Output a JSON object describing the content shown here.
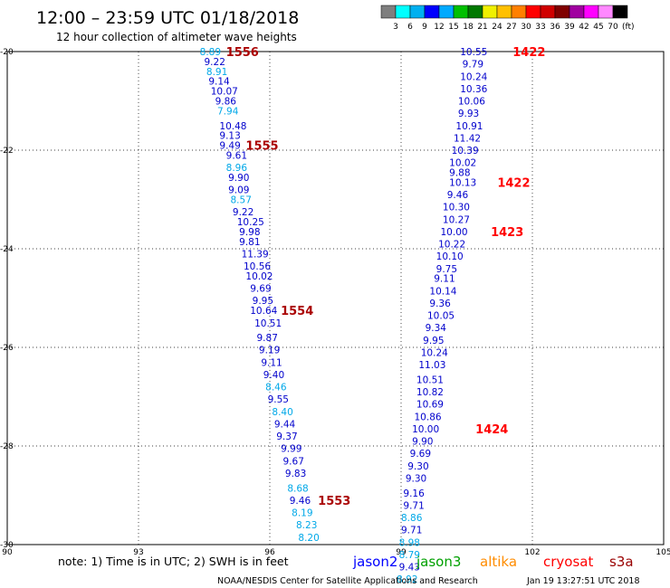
{
  "header": {
    "title": "12:00 – 23:59 UTC 01/18/2018",
    "subtitle": "12 hour collection of altimeter wave heights"
  },
  "scale": {
    "unit": "(ft)",
    "labels": [
      "3",
      "6",
      "9",
      "12",
      "15",
      "18",
      "21",
      "24",
      "27",
      "30",
      "33",
      "36",
      "39",
      "42",
      "45",
      "70"
    ],
    "colors": [
      "#7f7f7f",
      "#00ffff",
      "#00b0f0",
      "#0000ff",
      "#00aaff",
      "#00c000",
      "#007800",
      "#f0f000",
      "#ffc000",
      "#ff8000",
      "#ff0000",
      "#d00000",
      "#800000",
      "#a000a0",
      "#ff00ff",
      "#ff88ff",
      "#000000"
    ]
  },
  "map": {
    "x_ticks": [
      "90",
      "93",
      "96",
      "99",
      "102",
      "105"
    ],
    "y_ticks": [
      "-20",
      "-22",
      "-24",
      "-26",
      "-28",
      "-30"
    ],
    "lon_range": [
      90,
      105
    ],
    "lat_range": [
      -20,
      -30
    ]
  },
  "passes": [
    {
      "id": "west",
      "points": [
        {
          "lon": 94.4,
          "lat": -20.0,
          "v": "8.89",
          "c": "cyan"
        },
        {
          "lon": 94.5,
          "lat": -20.2,
          "v": "9.22",
          "c": "blue"
        },
        {
          "lon": 94.55,
          "lat": -20.4,
          "v": "8.91",
          "c": "cyan"
        },
        {
          "lon": 94.6,
          "lat": -20.6,
          "v": "9.14",
          "c": "blue"
        },
        {
          "lon": 94.65,
          "lat": -20.8,
          "v": "10.07",
          "c": "blue"
        },
        {
          "lon": 94.75,
          "lat": -21.0,
          "v": "9.86",
          "c": "blue"
        },
        {
          "lon": 94.8,
          "lat": -21.2,
          "v": "7.94",
          "c": "cyan"
        },
        {
          "lon": 94.85,
          "lat": -21.5,
          "v": "10.48",
          "c": "blue"
        },
        {
          "lon": 94.85,
          "lat": -21.7,
          "v": "9.13",
          "c": "blue"
        },
        {
          "lon": 94.85,
          "lat": -21.9,
          "v": "9.49",
          "c": "blue"
        },
        {
          "lon": 95.0,
          "lat": -22.1,
          "v": "9.61",
          "c": "blue"
        },
        {
          "lon": 95.0,
          "lat": -22.35,
          "v": "8.96",
          "c": "cyan"
        },
        {
          "lon": 95.05,
          "lat": -22.55,
          "v": "9.90",
          "c": "blue"
        },
        {
          "lon": 95.05,
          "lat": -22.8,
          "v": "9.09",
          "c": "blue"
        },
        {
          "lon": 95.1,
          "lat": -23.0,
          "v": "8.57",
          "c": "cyan"
        },
        {
          "lon": 95.15,
          "lat": -23.25,
          "v": "9.22",
          "c": "blue"
        },
        {
          "lon": 95.25,
          "lat": -23.45,
          "v": "10.25",
          "c": "blue"
        },
        {
          "lon": 95.3,
          "lat": -23.65,
          "v": "9.98",
          "c": "blue"
        },
        {
          "lon": 95.3,
          "lat": -23.85,
          "v": "9.81",
          "c": "blue"
        },
        {
          "lon": 95.35,
          "lat": -24.1,
          "v": "11.39",
          "c": "blue"
        },
        {
          "lon": 95.4,
          "lat": -24.35,
          "v": "10.56",
          "c": "blue"
        },
        {
          "lon": 95.45,
          "lat": -24.55,
          "v": "10.02",
          "c": "blue"
        },
        {
          "lon": 95.55,
          "lat": -24.8,
          "v": "9.69",
          "c": "blue"
        },
        {
          "lon": 95.6,
          "lat": -25.05,
          "v": "9.95",
          "c": "blue"
        },
        {
          "lon": 95.55,
          "lat": -25.25,
          "v": "10.64",
          "c": "blue"
        },
        {
          "lon": 95.65,
          "lat": -25.5,
          "v": "10.51",
          "c": "blue"
        },
        {
          "lon": 95.7,
          "lat": -25.8,
          "v": "9.87",
          "c": "blue"
        },
        {
          "lon": 95.75,
          "lat": -26.05,
          "v": "9.19",
          "c": "blue"
        },
        {
          "lon": 95.8,
          "lat": -26.3,
          "v": "9.11",
          "c": "blue"
        },
        {
          "lon": 95.85,
          "lat": -26.55,
          "v": "9.40",
          "c": "blue"
        },
        {
          "lon": 95.9,
          "lat": -26.8,
          "v": "8.46",
          "c": "cyan"
        },
        {
          "lon": 95.95,
          "lat": -27.05,
          "v": "9.55",
          "c": "blue"
        },
        {
          "lon": 96.05,
          "lat": -27.3,
          "v": "8.40",
          "c": "cyan"
        },
        {
          "lon": 96.1,
          "lat": -27.55,
          "v": "9.44",
          "c": "blue"
        },
        {
          "lon": 96.15,
          "lat": -27.8,
          "v": "9.37",
          "c": "blue"
        },
        {
          "lon": 96.25,
          "lat": -28.05,
          "v": "9.99",
          "c": "blue"
        },
        {
          "lon": 96.3,
          "lat": -28.3,
          "v": "9.67",
          "c": "blue"
        },
        {
          "lon": 96.35,
          "lat": -28.55,
          "v": "9.83",
          "c": "blue"
        },
        {
          "lon": 96.4,
          "lat": -28.85,
          "v": "8.68",
          "c": "cyan"
        },
        {
          "lon": 96.45,
          "lat": -29.1,
          "v": "9.46",
          "c": "blue"
        },
        {
          "lon": 96.5,
          "lat": -29.35,
          "v": "8.19",
          "c": "cyan"
        },
        {
          "lon": 96.6,
          "lat": -29.6,
          "v": "8.23",
          "c": "cyan"
        },
        {
          "lon": 96.65,
          "lat": -29.85,
          "v": "8.20",
          "c": "cyan"
        }
      ],
      "times": [
        {
          "lon": 95.0,
          "lat": -20.0,
          "t": "1556"
        },
        {
          "lon": 95.45,
          "lat": -21.9,
          "t": "1555"
        },
        {
          "lon": 96.25,
          "lat": -25.25,
          "t": "1554"
        },
        {
          "lon": 97.1,
          "lat": -29.1,
          "t": "1553"
        }
      ]
    },
    {
      "id": "east",
      "points": [
        {
          "lon": 100.35,
          "lat": -20.0,
          "v": "10.55",
          "c": "blue"
        },
        {
          "lon": 100.4,
          "lat": -20.25,
          "v": "9.79",
          "c": "blue"
        },
        {
          "lon": 100.35,
          "lat": -20.5,
          "v": "10.24",
          "c": "blue"
        },
        {
          "lon": 100.35,
          "lat": -20.75,
          "v": "10.36",
          "c": "blue"
        },
        {
          "lon": 100.3,
          "lat": -21.0,
          "v": "10.06",
          "c": "blue"
        },
        {
          "lon": 100.3,
          "lat": -21.25,
          "v": "9.93",
          "c": "blue"
        },
        {
          "lon": 100.25,
          "lat": -21.5,
          "v": "10.91",
          "c": "blue"
        },
        {
          "lon": 100.2,
          "lat": -21.75,
          "v": "11.42",
          "c": "blue"
        },
        {
          "lon": 100.15,
          "lat": -22.0,
          "v": "10.39",
          "c": "blue"
        },
        {
          "lon": 100.1,
          "lat": -22.25,
          "v": "10.02",
          "c": "blue"
        },
        {
          "lon": 100.1,
          "lat": -22.45,
          "v": "9.88",
          "c": "blue"
        },
        {
          "lon": 100.1,
          "lat": -22.65,
          "v": "10.13",
          "c": "blue"
        },
        {
          "lon": 100.05,
          "lat": -22.9,
          "v": "9.46",
          "c": "blue"
        },
        {
          "lon": 99.95,
          "lat": -23.15,
          "v": "10.30",
          "c": "blue"
        },
        {
          "lon": 99.95,
          "lat": -23.4,
          "v": "10.27",
          "c": "blue"
        },
        {
          "lon": 99.9,
          "lat": -23.65,
          "v": "10.00",
          "c": "blue"
        },
        {
          "lon": 99.85,
          "lat": -23.9,
          "v": "10.22",
          "c": "blue"
        },
        {
          "lon": 99.8,
          "lat": -24.15,
          "v": "10.10",
          "c": "blue"
        },
        {
          "lon": 99.8,
          "lat": -24.4,
          "v": "9.75",
          "c": "blue"
        },
        {
          "lon": 99.75,
          "lat": -24.6,
          "v": "9.11",
          "c": "blue"
        },
        {
          "lon": 99.65,
          "lat": -24.85,
          "v": "10.14",
          "c": "blue"
        },
        {
          "lon": 99.65,
          "lat": -25.1,
          "v": "9.36",
          "c": "blue"
        },
        {
          "lon": 99.6,
          "lat": -25.35,
          "v": "10.05",
          "c": "blue"
        },
        {
          "lon": 99.55,
          "lat": -25.6,
          "v": "9.34",
          "c": "blue"
        },
        {
          "lon": 99.5,
          "lat": -25.85,
          "v": "9.95",
          "c": "blue"
        },
        {
          "lon": 99.45,
          "lat": -26.1,
          "v": "10.24",
          "c": "blue"
        },
        {
          "lon": 99.4,
          "lat": -26.35,
          "v": "11.03",
          "c": "blue"
        },
        {
          "lon": 99.35,
          "lat": -26.65,
          "v": "10.51",
          "c": "blue"
        },
        {
          "lon": 99.35,
          "lat": -26.9,
          "v": "10.82",
          "c": "blue"
        },
        {
          "lon": 99.35,
          "lat": -27.15,
          "v": "10.69",
          "c": "blue"
        },
        {
          "lon": 99.3,
          "lat": -27.4,
          "v": "10.86",
          "c": "blue"
        },
        {
          "lon": 99.25,
          "lat": -27.65,
          "v": "10.00",
          "c": "blue"
        },
        {
          "lon": 99.25,
          "lat": -27.9,
          "v": "9.90",
          "c": "blue"
        },
        {
          "lon": 99.2,
          "lat": -28.15,
          "v": "9.69",
          "c": "blue"
        },
        {
          "lon": 99.15,
          "lat": -28.4,
          "v": "9.30",
          "c": "blue"
        },
        {
          "lon": 99.1,
          "lat": -28.65,
          "v": "9.30",
          "c": "blue"
        },
        {
          "lon": 99.05,
          "lat": -28.95,
          "v": "9.16",
          "c": "blue"
        },
        {
          "lon": 99.05,
          "lat": -29.2,
          "v": "9.71",
          "c": "blue"
        },
        {
          "lon": 99.0,
          "lat": -29.45,
          "v": "8.86",
          "c": "cyan"
        },
        {
          "lon": 99.0,
          "lat": -29.7,
          "v": "9.71",
          "c": "blue"
        },
        {
          "lon": 98.95,
          "lat": -29.95,
          "v": "8.98",
          "c": "cyan"
        },
        {
          "lon": 98.95,
          "lat": -30.2,
          "v": "8.79",
          "c": "cyan"
        },
        {
          "lon": 98.95,
          "lat": -30.45,
          "v": "9.43",
          "c": "blue"
        },
        {
          "lon": 98.9,
          "lat": -30.7,
          "v": "8.92",
          "c": "cyan"
        }
      ],
      "times": [
        {
          "lon": 101.55,
          "lat": -20.0,
          "t": "1422"
        },
        {
          "lon": 101.2,
          "lat": -22.65,
          "t": "1422"
        },
        {
          "lon": 101.05,
          "lat": -23.65,
          "t": "1423"
        },
        {
          "lon": 100.7,
          "lat": -27.65,
          "t": "1424"
        }
      ]
    }
  ],
  "point_colors": {
    "blue": "#0000cc",
    "cyan": "#00a8e8",
    "time": "#aa0000",
    "time_east": "#ff0000"
  },
  "footer": {
    "note": "note: 1) Time is in UTC; 2) SWH is in feet",
    "satellites": [
      {
        "name": "jason2",
        "color": "#0000ff"
      },
      {
        "name": "jason3",
        "color": "#00a000"
      },
      {
        "name": "altika",
        "color": "#ff8c00"
      },
      {
        "name": "cryosat",
        "color": "#ff0000"
      },
      {
        "name": "s3a",
        "color": "#990000"
      }
    ],
    "credit": "NOAA/NESDIS Center for Satellite Applications and Research",
    "timestamp": "Jan 19 13:27:51 UTC 2018"
  }
}
